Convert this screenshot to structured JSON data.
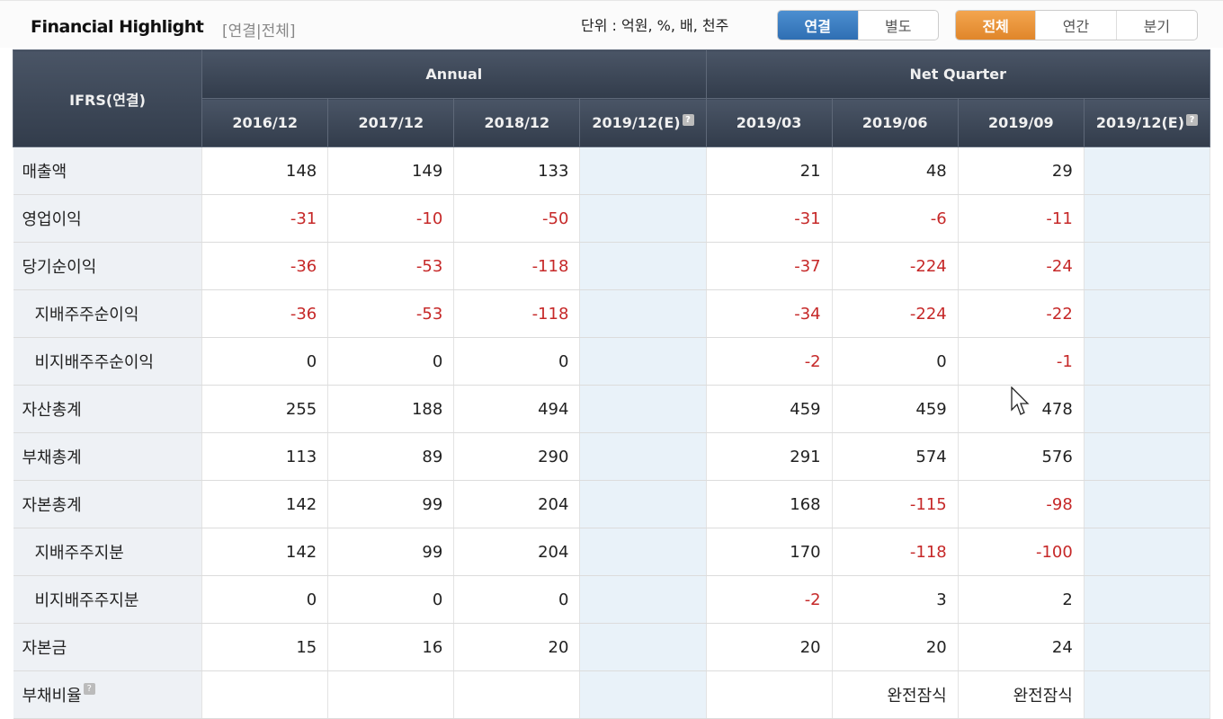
{
  "header": {
    "title": "Financial Highlight",
    "subtitle": "[연결|전체]",
    "unit": "단위 : 억원, %, 배, 천주"
  },
  "toggle_scope": [
    {
      "label": "연결",
      "active": true
    },
    {
      "label": "별도",
      "active": false
    }
  ],
  "toggle_period": [
    {
      "label": "전체",
      "active": true
    },
    {
      "label": "연간",
      "active": false
    },
    {
      "label": "분기",
      "active": false
    }
  ],
  "colors": {
    "header_bg": "#3a4555",
    "active_blue": "#2f6fb3",
    "active_orange": "#e0862a",
    "negative": "#c62828",
    "estimate_bg": "#e9f2f9"
  },
  "table": {
    "corner": "IFRS(연결)",
    "groups": [
      "Annual",
      "Net Quarter"
    ],
    "columns": [
      "2016/12",
      "2017/12",
      "2018/12",
      "2019/12(E)",
      "2019/03",
      "2019/06",
      "2019/09",
      "2019/12(E)"
    ],
    "rows": [
      {
        "label": "매출액",
        "values": [
          "148",
          "149",
          "133",
          "",
          "21",
          "48",
          "29",
          ""
        ]
      },
      {
        "label": "영업이익",
        "values": [
          "-31",
          "-10",
          "-50",
          "",
          "-31",
          "-6",
          "-11",
          ""
        ]
      },
      {
        "label": "당기순이익",
        "values": [
          "-36",
          "-53",
          "-118",
          "",
          "-37",
          "-224",
          "-24",
          ""
        ]
      },
      {
        "label": "지배주주순이익",
        "sub": true,
        "values": [
          "-36",
          "-53",
          "-118",
          "",
          "-34",
          "-224",
          "-22",
          ""
        ]
      },
      {
        "label": "비지배주주순이익",
        "sub": true,
        "values": [
          "0",
          "0",
          "0",
          "",
          "-2",
          "0",
          "-1",
          ""
        ]
      },
      {
        "label": "자산총계",
        "values": [
          "255",
          "188",
          "494",
          "",
          "459",
          "459",
          "478",
          ""
        ]
      },
      {
        "label": "부채총계",
        "values": [
          "113",
          "89",
          "290",
          "",
          "291",
          "574",
          "576",
          ""
        ]
      },
      {
        "label": "자본총계",
        "values": [
          "142",
          "99",
          "204",
          "",
          "168",
          "-115",
          "-98",
          ""
        ]
      },
      {
        "label": "지배주주지분",
        "sub": true,
        "values": [
          "142",
          "99",
          "204",
          "",
          "170",
          "-118",
          "-100",
          ""
        ]
      },
      {
        "label": "비지배주주지분",
        "sub": true,
        "values": [
          "0",
          "0",
          "0",
          "",
          "-2",
          "3",
          "2",
          ""
        ]
      },
      {
        "label": "자본금",
        "values": [
          "15",
          "16",
          "20",
          "",
          "20",
          "20",
          "24",
          ""
        ]
      },
      {
        "label": "부채비율",
        "help": true,
        "values": [
          "",
          "",
          "",
          "",
          "",
          "완전잠식",
          "완전잠식",
          ""
        ]
      }
    ]
  }
}
